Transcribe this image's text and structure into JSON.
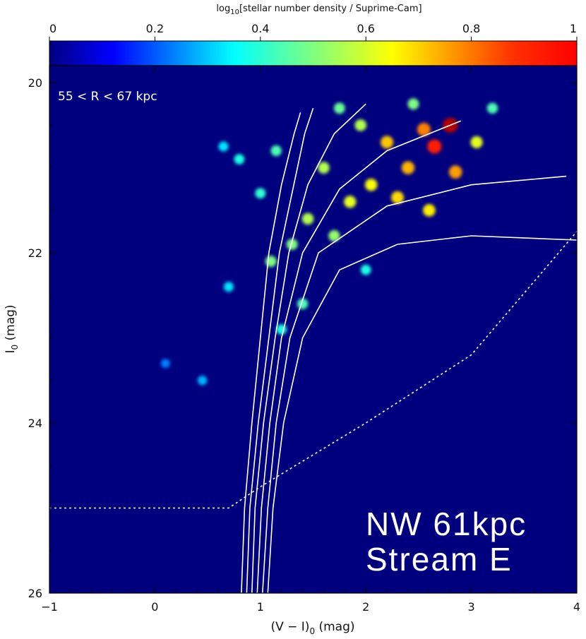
{
  "chart_data": {
    "type": "heatmap",
    "title": "",
    "colorbar": {
      "label_prefix": "log",
      "label_sub": "10",
      "label_main": "[stellar number density / Suprime-Cam]",
      "range": [
        0,
        1
      ],
      "ticks": [
        "0",
        "0.2",
        "0.4",
        "0.6",
        "0.8",
        "1"
      ],
      "colormap": "jet"
    },
    "xlabel": {
      "pre": "(V − I)",
      "sub": "0",
      "post": " (mag)"
    },
    "ylabel": {
      "pre": "I",
      "sub": "0",
      "post": " (mag)"
    },
    "xlim": [
      -1,
      4
    ],
    "ylim": [
      26,
      19.8
    ],
    "y_inverted": true,
    "xticks": [
      "-1",
      "0",
      "1",
      "2",
      "3",
      "4"
    ],
    "yticks": [
      "20",
      "22",
      "24",
      "26"
    ],
    "background_color": "#00007f",
    "annotations": {
      "radius_range": "55 < R < 67 kpc",
      "field_line1": "NW 61kpc",
      "field_line2": "Stream E"
    },
    "isochrones": [
      {
        "points": [
          [
            0.82,
            26.0
          ],
          [
            0.85,
            25.0
          ],
          [
            0.92,
            24.0
          ],
          [
            1.0,
            23.0
          ],
          [
            1.08,
            22.0
          ],
          [
            1.2,
            21.2
          ],
          [
            1.32,
            20.6
          ],
          [
            1.38,
            20.35
          ]
        ]
      },
      {
        "points": [
          [
            0.87,
            26.0
          ],
          [
            0.9,
            25.0
          ],
          [
            0.98,
            24.0
          ],
          [
            1.08,
            23.0
          ],
          [
            1.18,
            22.0
          ],
          [
            1.3,
            21.3
          ],
          [
            1.42,
            20.6
          ],
          [
            1.5,
            20.3
          ]
        ]
      },
      {
        "points": [
          [
            0.92,
            26.0
          ],
          [
            0.95,
            25.0
          ],
          [
            1.03,
            24.0
          ],
          [
            1.14,
            23.0
          ],
          [
            1.27,
            22.0
          ],
          [
            1.45,
            21.2
          ],
          [
            1.7,
            20.6
          ],
          [
            2.0,
            20.25
          ]
        ]
      },
      {
        "points": [
          [
            0.97,
            26.0
          ],
          [
            1.01,
            25.0
          ],
          [
            1.09,
            24.0
          ],
          [
            1.2,
            23.0
          ],
          [
            1.4,
            22.0
          ],
          [
            1.75,
            21.25
          ],
          [
            2.2,
            20.8
          ],
          [
            2.9,
            20.45
          ]
        ]
      },
      {
        "points": [
          [
            1.02,
            26.0
          ],
          [
            1.07,
            25.0
          ],
          [
            1.15,
            24.0
          ],
          [
            1.28,
            23.0
          ],
          [
            1.55,
            22.0
          ],
          [
            2.2,
            21.45
          ],
          [
            3.0,
            21.2
          ],
          [
            3.9,
            21.1
          ]
        ]
      },
      {
        "points": [
          [
            1.07,
            26.0
          ],
          [
            1.12,
            25.0
          ],
          [
            1.22,
            24.0
          ],
          [
            1.4,
            23.0
          ],
          [
            1.75,
            22.2
          ],
          [
            2.3,
            21.9
          ],
          [
            3.0,
            21.8
          ],
          [
            4.0,
            21.85
          ]
        ]
      }
    ],
    "completeness_limit": {
      "points": [
        [
          -1.0,
          25.0
        ],
        [
          0.7,
          25.0
        ],
        [
          1.0,
          24.75
        ],
        [
          2.0,
          24.0
        ],
        [
          3.0,
          23.2
        ],
        [
          4.0,
          21.75
        ]
      ]
    },
    "density_clumps": [
      {
        "x": 2.8,
        "y": 20.5,
        "d": 0.95
      },
      {
        "x": 2.65,
        "y": 20.75,
        "d": 0.85
      },
      {
        "x": 2.55,
        "y": 20.55,
        "d": 0.75
      },
      {
        "x": 2.4,
        "y": 21.0,
        "d": 0.7
      },
      {
        "x": 2.85,
        "y": 21.05,
        "d": 0.72
      },
      {
        "x": 2.2,
        "y": 20.7,
        "d": 0.68
      },
      {
        "x": 2.05,
        "y": 21.2,
        "d": 0.62
      },
      {
        "x": 1.85,
        "y": 21.4,
        "d": 0.6
      },
      {
        "x": 2.3,
        "y": 21.35,
        "d": 0.66
      },
      {
        "x": 2.6,
        "y": 21.5,
        "d": 0.64
      },
      {
        "x": 1.95,
        "y": 20.5,
        "d": 0.55
      },
      {
        "x": 1.6,
        "y": 21.0,
        "d": 0.55
      },
      {
        "x": 1.45,
        "y": 21.6,
        "d": 0.55
      },
      {
        "x": 1.3,
        "y": 21.9,
        "d": 0.5
      },
      {
        "x": 1.7,
        "y": 21.8,
        "d": 0.52
      },
      {
        "x": 1.1,
        "y": 22.1,
        "d": 0.5
      },
      {
        "x": 1.4,
        "y": 22.6,
        "d": 0.45
      },
      {
        "x": 1.2,
        "y": 22.9,
        "d": 0.4
      },
      {
        "x": 1.0,
        "y": 21.3,
        "d": 0.42
      },
      {
        "x": 0.8,
        "y": 20.9,
        "d": 0.4
      },
      {
        "x": 0.65,
        "y": 20.75,
        "d": 0.35
      },
      {
        "x": 1.15,
        "y": 20.8,
        "d": 0.45
      },
      {
        "x": 3.05,
        "y": 20.7,
        "d": 0.6
      },
      {
        "x": 3.2,
        "y": 20.3,
        "d": 0.45
      },
      {
        "x": 2.45,
        "y": 20.25,
        "d": 0.5
      },
      {
        "x": 1.75,
        "y": 20.3,
        "d": 0.48
      },
      {
        "x": 0.45,
        "y": 23.5,
        "d": 0.3
      },
      {
        "x": 0.1,
        "y": 23.3,
        "d": 0.25
      },
      {
        "x": 2.0,
        "y": 22.2,
        "d": 0.4
      },
      {
        "x": 0.7,
        "y": 22.4,
        "d": 0.35
      }
    ]
  }
}
